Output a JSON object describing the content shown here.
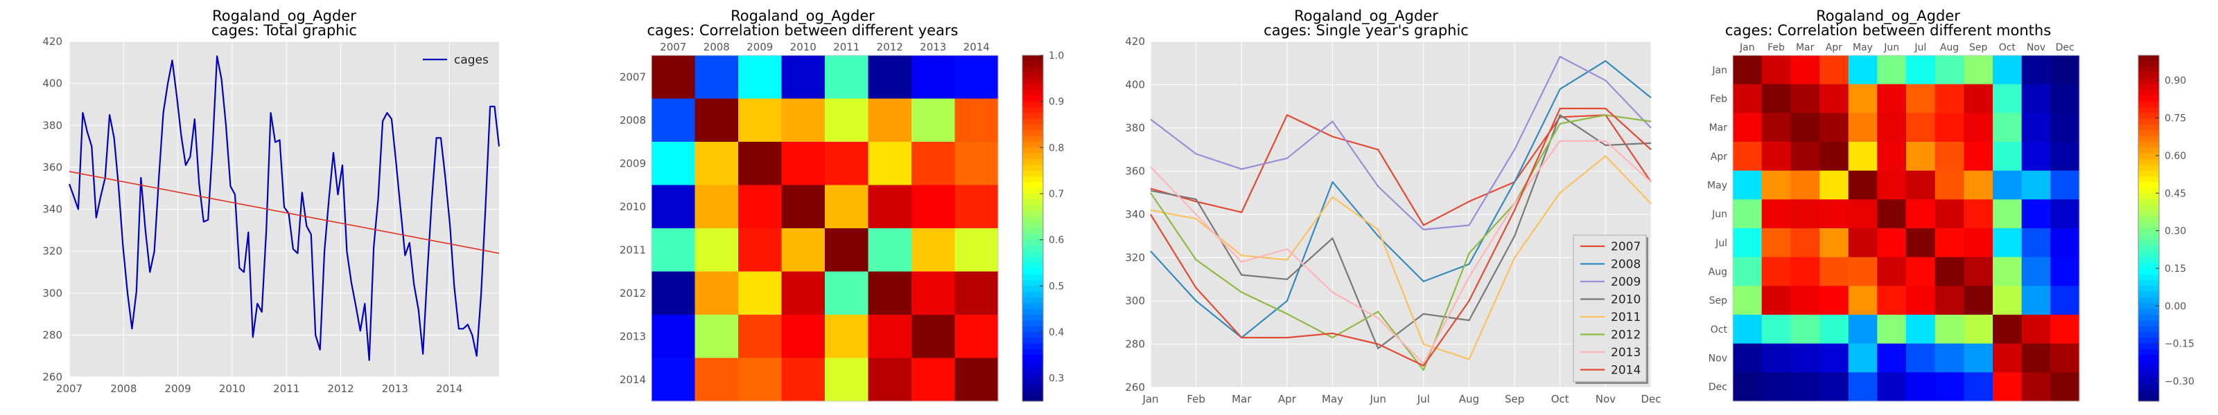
{
  "figure": {
    "background": "#ffffff",
    "panel_background": "#e5e5e5",
    "grid_color": "#ffffff"
  },
  "chart_data": [
    {
      "type": "line",
      "title": "Rogaland_og_Agder\ncages: Total graphic",
      "xlabel": "",
      "ylabel": "",
      "x_tick_labels": [
        "2007",
        "2008",
        "2009",
        "2010",
        "2011",
        "2012",
        "2013",
        "2014"
      ],
      "x_range": [
        2007.0,
        2014.917
      ],
      "ylim": [
        260,
        420
      ],
      "y_ticks": [
        260,
        280,
        300,
        320,
        340,
        360,
        380,
        400,
        420
      ],
      "grid": true,
      "legend": {
        "position": "top-right",
        "entries": [
          "cages"
        ]
      },
      "series": [
        {
          "name": "cages",
          "color": "#0000bf",
          "values": [
            352,
            346,
            340,
            386,
            377,
            370,
            336,
            346,
            355,
            385,
            374,
            351,
            322,
            300,
            283,
            301,
            355,
            330,
            310,
            320,
            355,
            386,
            400,
            411,
            394,
            375,
            361,
            365,
            383,
            352,
            334,
            335,
            370,
            413,
            402,
            380,
            351,
            347,
            312,
            310,
            329,
            279,
            295,
            291,
            330,
            386,
            372,
            373,
            341,
            338,
            321,
            319,
            348,
            332,
            328,
            280,
            273,
            320,
            345,
            367,
            347,
            361,
            320,
            305,
            294,
            282,
            295,
            268,
            322,
            345,
            382,
            386,
            383,
            362,
            340,
            318,
            324,
            304,
            292,
            271,
            311,
            345,
            374,
            374,
            355,
            333,
            303,
            283,
            283,
            285,
            280,
            270,
            300,
            342,
            389,
            389,
            370
          ]
        }
      ],
      "trendline": {
        "color": "#e03020",
        "start": 358,
        "end": 319
      }
    },
    {
      "type": "heatmap",
      "title": "Rogaland_og_Agder\ncages: Correlation between different years",
      "labels": [
        "2007",
        "2008",
        "2009",
        "2010",
        "2011",
        "2012",
        "2013",
        "2014"
      ],
      "colormap": "jet",
      "vmin": 0.25,
      "vmax": 1.0,
      "colorbar_ticks": [
        "0.3",
        "0.4",
        "0.5",
        "0.6",
        "0.7",
        "0.8",
        "0.9",
        "1.0"
      ],
      "colorbar_tick_values": [
        0.3,
        0.4,
        0.5,
        0.6,
        0.7,
        0.8,
        0.9,
        1.0
      ],
      "matrix": [
        [
          1.0,
          0.4,
          0.53,
          0.31,
          0.58,
          0.27,
          0.34,
          0.35
        ],
        [
          0.4,
          1.0,
          0.76,
          0.78,
          0.69,
          0.79,
          0.66,
          0.84
        ],
        [
          0.53,
          0.76,
          1.0,
          0.9,
          0.89,
          0.74,
          0.86,
          0.83
        ],
        [
          0.31,
          0.78,
          0.9,
          1.0,
          0.77,
          0.94,
          0.91,
          0.88
        ],
        [
          0.58,
          0.69,
          0.89,
          0.77,
          1.0,
          0.59,
          0.76,
          0.69
        ],
        [
          0.27,
          0.79,
          0.74,
          0.94,
          0.59,
          1.0,
          0.92,
          0.96
        ],
        [
          0.34,
          0.66,
          0.86,
          0.91,
          0.76,
          0.92,
          1.0,
          0.9
        ],
        [
          0.35,
          0.84,
          0.83,
          0.88,
          0.69,
          0.96,
          0.9,
          1.0
        ]
      ]
    },
    {
      "type": "line",
      "title": "Rogaland_og_Agder\ncages: Single year's graphic",
      "xlabel": "",
      "ylabel": "",
      "categories": [
        "Jan",
        "Feb",
        "Mar",
        "Apr",
        "May",
        "Jun",
        "Jul",
        "Aug",
        "Sep",
        "Oct",
        "Nov",
        "Dec"
      ],
      "ylim": [
        260,
        420
      ],
      "y_ticks": [
        260,
        280,
        300,
        320,
        340,
        360,
        380,
        400,
        420
      ],
      "grid": true,
      "legend": {
        "position": "bottom-right",
        "entries": [
          "2007",
          "2008",
          "2009",
          "2010",
          "2011",
          "2012",
          "2013",
          "2014"
        ]
      },
      "series": [
        {
          "name": "2007",
          "color": "#e24a33",
          "values": [
            352,
            346,
            341,
            386,
            376,
            370,
            335,
            346,
            355,
            385,
            386,
            355
          ]
        },
        {
          "name": "2008",
          "color": "#348abd",
          "values": [
            323,
            300,
            283,
            300,
            355,
            330,
            309,
            317,
            355,
            398,
            411,
            394
          ]
        },
        {
          "name": "2009",
          "color": "#988ed5",
          "values": [
            384,
            368,
            361,
            366,
            383,
            353,
            333,
            335,
            370,
            413,
            402,
            380
          ]
        },
        {
          "name": "2010",
          "color": "#777777",
          "values": [
            351,
            347,
            312,
            310,
            329,
            278,
            294,
            291,
            330,
            386,
            372,
            373
          ]
        },
        {
          "name": "2011",
          "color": "#fbc15e",
          "values": [
            342,
            338,
            321,
            319,
            348,
            333,
            280,
            273,
            320,
            350,
            367,
            345
          ]
        },
        {
          "name": "2012",
          "color": "#8eba42",
          "values": [
            350,
            319,
            304,
            294,
            283,
            295,
            268,
            322,
            345,
            382,
            386,
            383
          ]
        },
        {
          "name": "2013",
          "color": "#ffb5b8",
          "values": [
            362,
            340,
            318,
            324,
            304,
            292,
            271,
            311,
            345,
            374,
            374,
            355
          ]
        },
        {
          "name": "2014",
          "color": "#e24a33",
          "values": [
            340,
            306,
            283,
            283,
            285,
            280,
            270,
            300,
            342,
            389,
            389,
            370
          ]
        }
      ]
    },
    {
      "type": "heatmap",
      "title": "Rogaland_og_Agder\ncages: Correlation between different months",
      "labels": [
        "Jan",
        "Feb",
        "Mar",
        "Apr",
        "May",
        "Jun",
        "Jul",
        "Aug",
        "Sep",
        "Oct",
        "Nov",
        "Dec"
      ],
      "colormap": "jet",
      "vmin": -0.38,
      "vmax": 1.0,
      "colorbar_ticks": [
        "−0.30",
        "−0.15",
        "0.00",
        "0.15",
        "0.30",
        "0.45",
        "0.60",
        "0.75",
        "0.90"
      ],
      "colorbar_tick_values": [
        -0.3,
        -0.15,
        0.0,
        0.15,
        0.3,
        0.45,
        0.6,
        0.75,
        0.9
      ],
      "matrix": [
        [
          1.0,
          0.89,
          0.84,
          0.75,
          0.1,
          0.3,
          0.16,
          0.24,
          0.33,
          0.08,
          -0.35,
          -0.38
        ],
        [
          0.89,
          1.0,
          0.95,
          0.88,
          0.63,
          0.85,
          0.7,
          0.78,
          0.88,
          0.21,
          -0.3,
          -0.36
        ],
        [
          0.84,
          0.95,
          1.0,
          0.96,
          0.66,
          0.86,
          0.74,
          0.8,
          0.85,
          0.26,
          -0.28,
          -0.35
        ],
        [
          0.75,
          0.88,
          0.96,
          1.0,
          0.52,
          0.85,
          0.63,
          0.72,
          0.83,
          0.2,
          -0.26,
          -0.33
        ],
        [
          0.1,
          0.63,
          0.66,
          0.52,
          1.0,
          0.86,
          0.9,
          0.71,
          0.63,
          0.0,
          0.05,
          -0.1
        ],
        [
          0.3,
          0.85,
          0.86,
          0.85,
          0.86,
          1.0,
          0.83,
          0.89,
          0.8,
          0.32,
          -0.2,
          -0.28
        ],
        [
          0.16,
          0.7,
          0.74,
          0.63,
          0.9,
          0.83,
          1.0,
          0.82,
          0.84,
          0.1,
          -0.1,
          -0.22
        ],
        [
          0.24,
          0.78,
          0.8,
          0.72,
          0.71,
          0.89,
          0.82,
          1.0,
          0.93,
          0.34,
          -0.05,
          -0.2
        ],
        [
          0.33,
          0.88,
          0.85,
          0.83,
          0.63,
          0.8,
          0.84,
          0.93,
          1.0,
          0.39,
          0.0,
          -0.15
        ],
        [
          0.08,
          0.21,
          0.26,
          0.2,
          0.0,
          0.32,
          0.1,
          0.34,
          0.39,
          1.0,
          0.89,
          0.82
        ],
        [
          -0.35,
          -0.3,
          -0.28,
          -0.26,
          0.05,
          -0.2,
          -0.1,
          -0.05,
          0.0,
          0.89,
          1.0,
          0.95
        ],
        [
          -0.38,
          -0.36,
          -0.35,
          -0.33,
          -0.1,
          -0.28,
          -0.22,
          -0.2,
          -0.15,
          0.82,
          0.95,
          1.0
        ]
      ]
    }
  ]
}
